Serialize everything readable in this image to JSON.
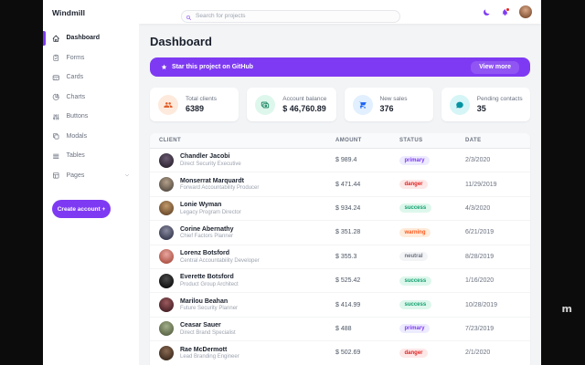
{
  "app": {
    "brand": "Windmill"
  },
  "topbar": {
    "search_placeholder": "Search for projects"
  },
  "sidebar": {
    "items": [
      {
        "label": "Dashboard",
        "icon": "home-icon",
        "active": true
      },
      {
        "label": "Forms",
        "icon": "clipboard-icon"
      },
      {
        "label": "Cards",
        "icon": "card-icon"
      },
      {
        "label": "Charts",
        "icon": "pie-chart-icon"
      },
      {
        "label": "Buttons",
        "icon": "adjustments-icon"
      },
      {
        "label": "Modals",
        "icon": "modals-icon"
      },
      {
        "label": "Tables",
        "icon": "table-icon"
      },
      {
        "label": "Pages",
        "icon": "pages-icon",
        "has_submenu": true
      }
    ],
    "create_button": "Create account +"
  },
  "page": {
    "title": "Dashboard"
  },
  "banner": {
    "text": "Star this project on GitHub",
    "action": "View more",
    "color": "#7e3af2"
  },
  "stats": [
    {
      "label": "Total clients",
      "value": "6389",
      "icon": "people-icon",
      "icon_color": "#e25822",
      "icon_bg": "#fdeadd"
    },
    {
      "label": "Account balance",
      "value": "$ 46,760.89",
      "icon": "money-icon",
      "icon_color": "#057a55",
      "icon_bg": "#def7ec"
    },
    {
      "label": "New sales",
      "value": "376",
      "icon": "cart-icon",
      "icon_color": "#1c64f2",
      "icon_bg": "#e1effe"
    },
    {
      "label": "Pending contacts",
      "value": "35",
      "icon": "chat-icon",
      "icon_color": "#0694a2",
      "icon_bg": "#d5f5f6"
    }
  ],
  "table": {
    "columns": [
      "Client",
      "Amount",
      "Status",
      "Date"
    ],
    "rows": [
      {
        "name": "Chandler Jacobi",
        "role": "Direct Security Executive",
        "amount": "$ 989.4",
        "status": "primary",
        "date": "2/3/2020",
        "avatar_colors": [
          "#6b5b73",
          "#2f2633"
        ]
      },
      {
        "name": "Monserrat Marquardt",
        "role": "Forward Accountability Producer",
        "amount": "$ 471.44",
        "status": "danger",
        "date": "11/29/2019",
        "avatar_colors": [
          "#b4a089",
          "#5c5248"
        ]
      },
      {
        "name": "Lonie Wyman",
        "role": "Legacy Program Director",
        "amount": "$ 934.24",
        "status": "success",
        "date": "4/3/2020",
        "avatar_colors": [
          "#c29a6b",
          "#6e4e2e"
        ]
      },
      {
        "name": "Corine Abernathy",
        "role": "Chief Factors Planner",
        "amount": "$ 351.28",
        "status": "warning",
        "date": "6/21/2019",
        "avatar_colors": [
          "#8a8ba0",
          "#3a3c52"
        ]
      },
      {
        "name": "Lorenz Botsford",
        "role": "Central Accountability Developer",
        "amount": "$ 355.3",
        "status": "neutral",
        "date": "8/28/2019",
        "avatar_colors": [
          "#e8a7a0",
          "#b05548"
        ]
      },
      {
        "name": "Everette Botsford",
        "role": "Product Group Architect",
        "amount": "$ 525.42",
        "status": "success",
        "date": "1/16/2020",
        "avatar_colors": [
          "#4a4a4a",
          "#111111"
        ]
      },
      {
        "name": "Marilou Beahan",
        "role": "Future Security Planner",
        "amount": "$ 414.99",
        "status": "success",
        "date": "10/28/2019",
        "avatar_colors": [
          "#9c5a5e",
          "#4a2328"
        ]
      },
      {
        "name": "Ceasar Sauer",
        "role": "Direct Brand Specialist",
        "amount": "$ 488",
        "status": "primary",
        "date": "7/23/2019",
        "avatar_colors": [
          "#a4b08a",
          "#5c6848"
        ]
      },
      {
        "name": "Rae McDermott",
        "role": "Lead Branding Engineer",
        "amount": "$ 502.69",
        "status": "danger",
        "date": "2/1/2020",
        "avatar_colors": [
          "#8a6a52",
          "#3f2d20"
        ]
      }
    ]
  },
  "badge_colors": {
    "primary": {
      "bg": "#edebfe",
      "text": "#7e3af2"
    },
    "danger": {
      "bg": "#fde8e8",
      "text": "#e02424"
    },
    "success": {
      "bg": "#def7ec",
      "text": "#0e9f6e"
    },
    "warning": {
      "bg": "#feecdc",
      "text": "#ff5a1f"
    },
    "neutral": {
      "bg": "#f3f4f6",
      "text": "#6b7280"
    }
  },
  "watermark": "m"
}
